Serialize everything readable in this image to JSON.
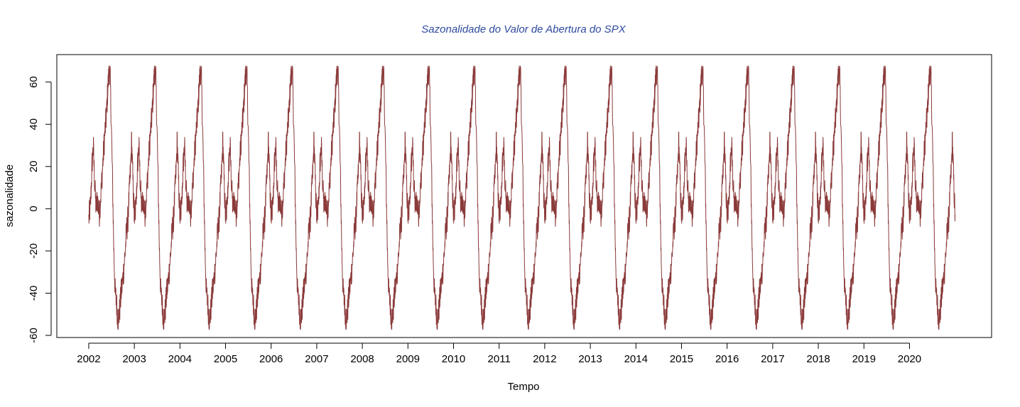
{
  "chart_data": {
    "type": "line",
    "title": "Sazonalidade do Valor de Abertura do SPX",
    "xlabel": "Tempo",
    "ylabel": "sazonalidade",
    "x_ticks": [
      "2002",
      "2003",
      "2004",
      "2005",
      "2006",
      "2007",
      "2008",
      "2009",
      "2010",
      "2011",
      "2012",
      "2013",
      "2014",
      "2015",
      "2016",
      "2017",
      "2018",
      "2019",
      "2020"
    ],
    "y_ticks": [
      -60,
      -40,
      -20,
      0,
      20,
      40,
      60
    ],
    "xlim": [
      2001.3,
      2021.8
    ],
    "ylim": [
      -61,
      73
    ],
    "x_start": 2002.0,
    "x_end": 2021.0,
    "grid": false,
    "colors": {
      "series": "#8B3A3A",
      "title": "#2E4A9E",
      "axis": "#000000"
    },
    "seasonal_cycle": {
      "period": 1.0,
      "x": [
        0.0,
        0.04,
        0.07,
        0.1,
        0.13,
        0.16,
        0.19,
        0.23,
        0.27,
        0.31,
        0.35,
        0.39,
        0.42,
        0.45,
        0.47,
        0.49,
        0.52,
        0.55,
        0.58,
        0.61,
        0.64,
        0.67,
        0.71,
        0.74,
        0.77,
        0.8,
        0.83,
        0.86,
        0.89,
        0.92,
        0.94,
        0.97,
        1.0
      ],
      "y": [
        -5,
        2,
        20,
        30,
        12,
        0,
        5,
        -3,
        8,
        22,
        35,
        45,
        58,
        66,
        62,
        45,
        15,
        -20,
        -40,
        -45,
        -52,
        -50,
        -40,
        -35,
        -28,
        -20,
        -10,
        -5,
        8,
        20,
        33,
        12,
        -5
      ]
    }
  }
}
